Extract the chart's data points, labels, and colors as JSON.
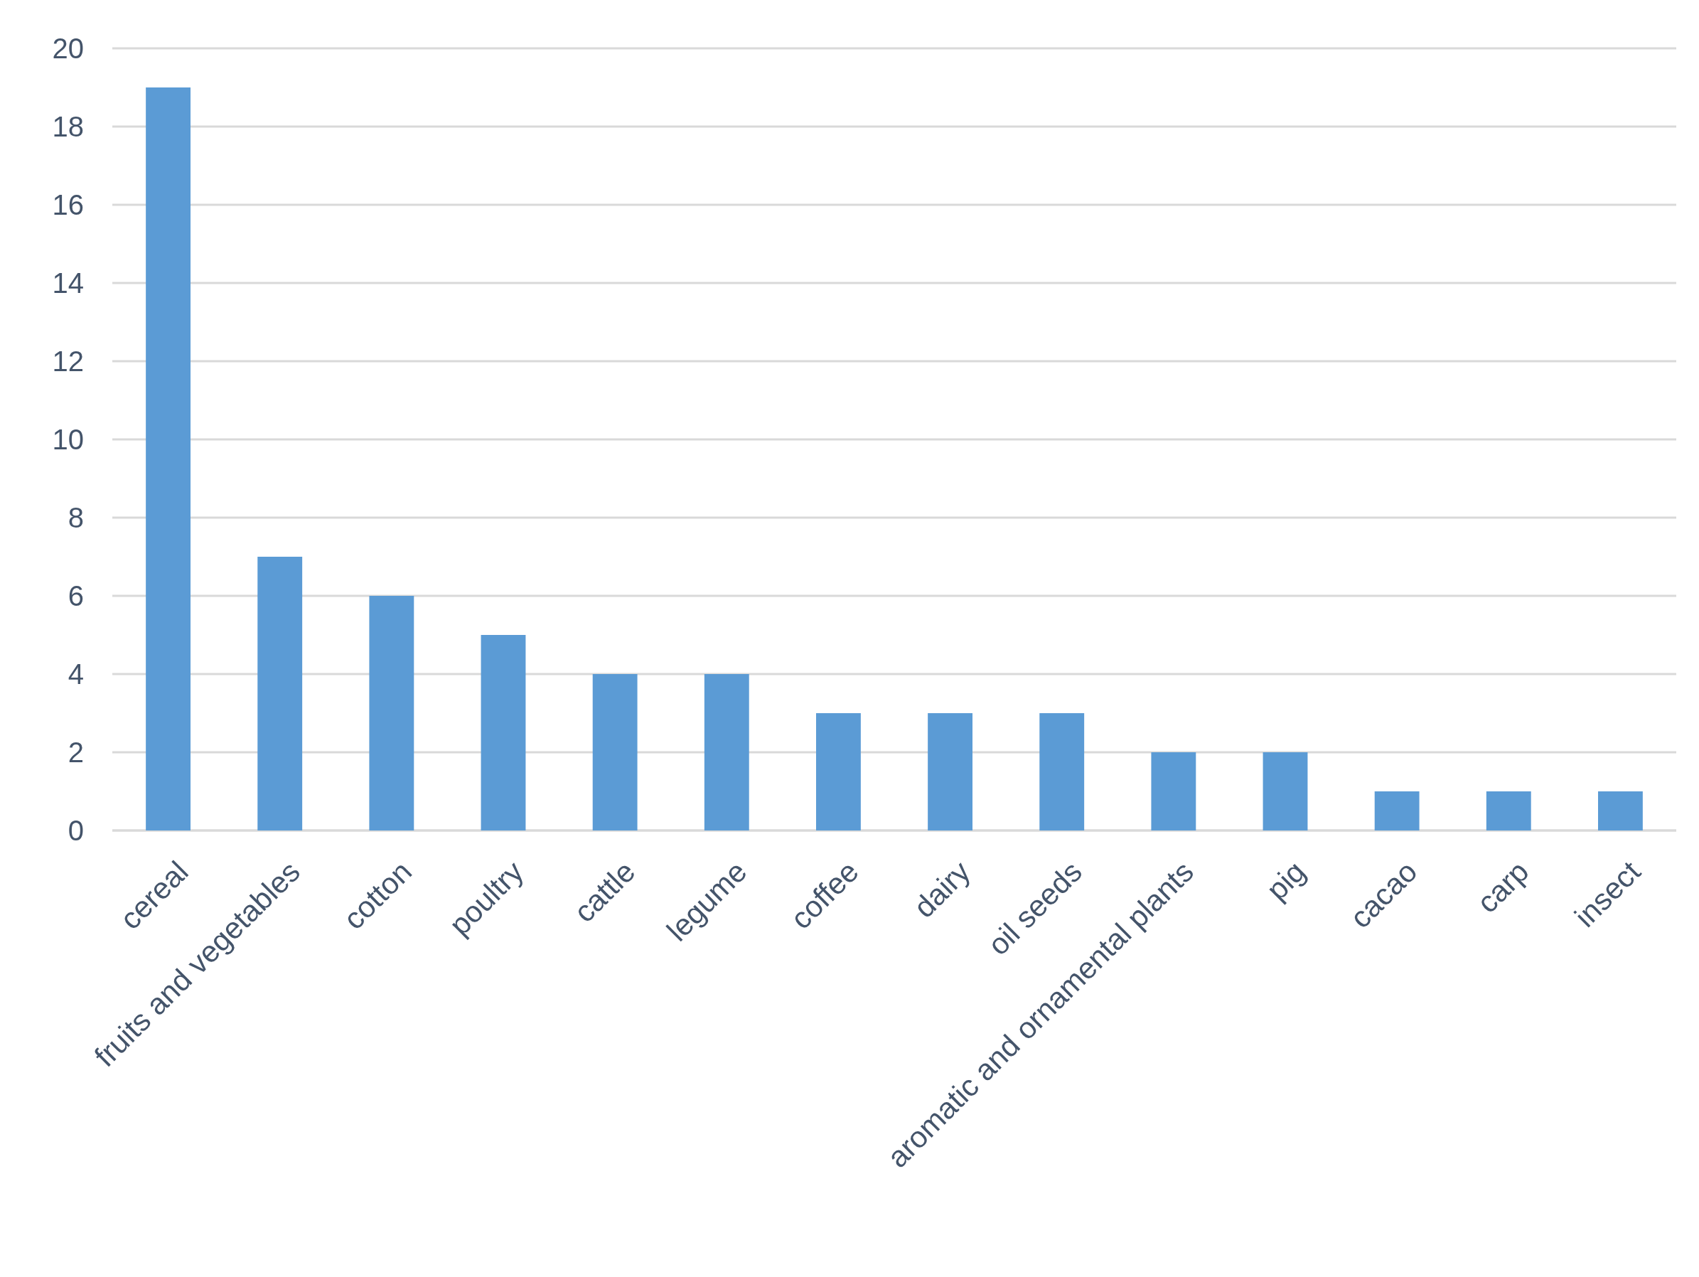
{
  "chart_data": {
    "type": "bar",
    "categories": [
      "cereal",
      "fruits and vegetables",
      "cotton",
      "poultry",
      "cattle",
      "legume",
      "coffee",
      "dairy",
      "oil seeds",
      "aromatic and ornamental plants",
      "pig",
      "cacao",
      "carp",
      "insect"
    ],
    "values": [
      19,
      7,
      6,
      5,
      4,
      4,
      3,
      3,
      3,
      2,
      2,
      1,
      1,
      1
    ],
    "color": "#5b9bd5",
    "ylim": [
      0,
      20
    ],
    "yticks": [
      0,
      2,
      4,
      6,
      8,
      10,
      12,
      14,
      16,
      18,
      20
    ],
    "grid": "y"
  }
}
